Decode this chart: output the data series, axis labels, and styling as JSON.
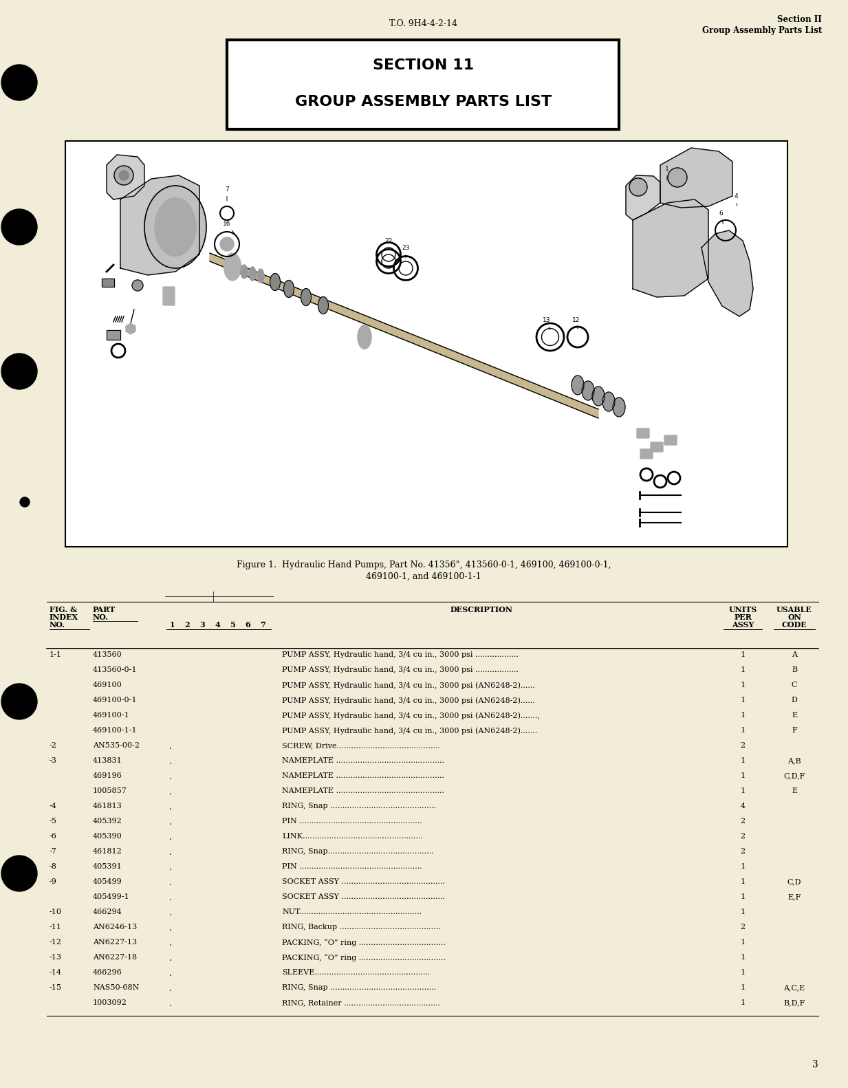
{
  "bg_color": "#f2edd8",
  "header_to": "T.O. 9H4-4-2-14",
  "header_right_line1": "Section II",
  "header_right_line2": "Group Assembly Parts List",
  "section_title_line1": "SECTION 11",
  "section_title_line2": "GROUP ASSEMBLY PARTS LIST",
  "figure_caption_line1": "Figure 1.  Hydraulic Hand Pumps, Part No. 41356°, 413560-0-1, 469100, 469100-0-1,",
  "figure_caption_line2": "469100-1, and 469100-1-1",
  "table_rows": [
    {
      "fig_index": "1-1",
      "part_no": "413560",
      "indent": 0,
      "description": "PUMP ASSY, Hydraulic hand, 3/4 cu in., 3000 psi ..................",
      "units": "1",
      "usable": "A"
    },
    {
      "fig_index": "",
      "part_no": "413560-0-1",
      "indent": 0,
      "description": "PUMP ASSY, Hydraulic hand, 3/4 cu in., 3000 psi ..................",
      "units": "1",
      "usable": "B"
    },
    {
      "fig_index": "",
      "part_no": "469100",
      "indent": 0,
      "description": "PUMP ASSY, Hydraulic hand, 3/4 cu in., 3000 psi (AN6248-2)......",
      "units": "1",
      "usable": "C"
    },
    {
      "fig_index": "",
      "part_no": "469100-0-1",
      "indent": 0,
      "description": "PUMP ASSY, Hydraulic hand, 3/4 cu in., 3000 psi (AN6248-2)......",
      "units": "1",
      "usable": "D"
    },
    {
      "fig_index": "",
      "part_no": "469100-1",
      "indent": 0,
      "description": "PUMP ASSY, Hydraulic hand, 3/4 cu in., 3000 psi (AN6248-2).......,",
      "units": "1",
      "usable": "E"
    },
    {
      "fig_index": "",
      "part_no": "469100-1-1",
      "indent": 0,
      "description": "PUMP ASSY, Hydraulic hand, 3/4 cu in., 3000 psi (AN6248-2).......",
      "units": "1",
      "usable": "F"
    },
    {
      "fig_index": "-2",
      "part_no": "AN535-00-2",
      "indent": 1,
      "description": "SCREW, Drive...........................................",
      "units": "2",
      "usable": ""
    },
    {
      "fig_index": "-3",
      "part_no": "413831",
      "indent": 1,
      "description": "NAMEPLATE .............................................",
      "units": "1",
      "usable": "A,B"
    },
    {
      "fig_index": "",
      "part_no": "469196",
      "indent": 1,
      "description": "NAMEPLATE .............................................",
      "units": "1",
      "usable": "C,D,F"
    },
    {
      "fig_index": "",
      "part_no": "1005857",
      "indent": 1,
      "description": "NAMEPLATE .............................................",
      "units": "1",
      "usable": "E"
    },
    {
      "fig_index": "-4",
      "part_no": "461813",
      "indent": 1,
      "description": "RING, Snap ............................................",
      "units": "4",
      "usable": ""
    },
    {
      "fig_index": "-5",
      "part_no": "405392",
      "indent": 1,
      "description": "PIN ...................................................",
      "units": "2",
      "usable": ""
    },
    {
      "fig_index": "-6",
      "part_no": "405390",
      "indent": 1,
      "description": "LINK..................................................",
      "units": "2",
      "usable": ""
    },
    {
      "fig_index": "-7",
      "part_no": "461812",
      "indent": 1,
      "description": "RING, Snap............................................",
      "units": "2",
      "usable": ""
    },
    {
      "fig_index": "-8",
      "part_no": "405391",
      "indent": 1,
      "description": "PIN ...................................................",
      "units": "1",
      "usable": ""
    },
    {
      "fig_index": "-9",
      "part_no": "405499",
      "indent": 1,
      "description": "SOCKET ASSY ...........................................",
      "units": "1",
      "usable": "C,D"
    },
    {
      "fig_index": "",
      "part_no": "405499-1",
      "indent": 1,
      "description": "SOCKET ASSY ...........................................",
      "units": "1",
      "usable": "E,F"
    },
    {
      "fig_index": "-10",
      "part_no": "466294",
      "indent": 1,
      "description": "NUT...................................................",
      "units": "1",
      "usable": ""
    },
    {
      "fig_index": "-11",
      "part_no": "AN6246-13",
      "indent": 1,
      "description": "RING, Backup ..........................................",
      "units": "2",
      "usable": ""
    },
    {
      "fig_index": "-12",
      "part_no": "AN6227-13",
      "indent": 1,
      "description": "PACKING, “O” ring ....................................",
      "units": "1",
      "usable": ""
    },
    {
      "fig_index": "-13",
      "part_no": "AN6227-18",
      "indent": 1,
      "description": "PACKING, “O” ring ....................................",
      "units": "1",
      "usable": ""
    },
    {
      "fig_index": "-14",
      "part_no": "466296",
      "indent": 1,
      "description": "SLEEVE................................................",
      "units": "1",
      "usable": ""
    },
    {
      "fig_index": "-15",
      "part_no": "NAS50-68N",
      "indent": 1,
      "description": "RING, Snap ............................................",
      "units": "1",
      "usable": "A,C,E"
    },
    {
      "fig_index": "",
      "part_no": "1003092",
      "indent": 1,
      "description": "RING, Retainer ........................................",
      "units": "1",
      "usable": "B,D,F"
    }
  ],
  "page_number": "3"
}
